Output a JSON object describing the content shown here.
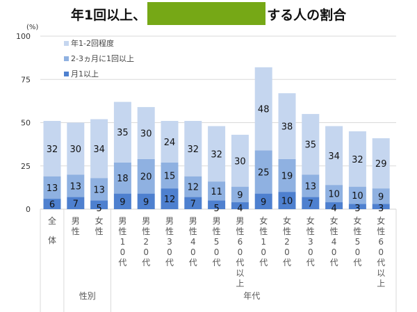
{
  "title": {
    "prefix": "年1回以上、",
    "suffix": "する人の割合",
    "mask_color": "#76a816"
  },
  "colors": {
    "low": "#c5d6ef",
    "mid": "#8fb1e1",
    "high": "#4e80cf"
  },
  "chart_data": {
    "type": "bar",
    "stacked": true,
    "yunit": "(%)",
    "ylim": [
      0,
      100
    ],
    "yticks": [
      0,
      25,
      50,
      75,
      100
    ],
    "legend": {
      "placement": "top-left",
      "entries": [
        "年1-2回程度",
        "2-3ヵ月に1回以上",
        "月1以上"
      ]
    },
    "categories": [
      "全体",
      "男性",
      "女性",
      "男性10代",
      "男性20代",
      "男性30代",
      "男性40代",
      "男性50代",
      "男性60代以上",
      "女性10代",
      "女性20代",
      "女性30代",
      "女性40代",
      "女性50代",
      "女性60代以上"
    ],
    "groups": [
      {
        "label": "",
        "from": 0,
        "to": 0
      },
      {
        "label": "性別",
        "from": 1,
        "to": 2
      },
      {
        "label": "年代",
        "from": 3,
        "to": 14
      }
    ],
    "series": [
      {
        "name": "月1以上",
        "values": [
          6,
          7,
          5,
          9,
          9,
          12,
          7,
          5,
          4,
          9,
          10,
          7,
          4,
          3,
          3
        ]
      },
      {
        "name": "2-3ヵ月に1回以上",
        "values": [
          13,
          13,
          13,
          18,
          20,
          15,
          12,
          11,
          9,
          25,
          19,
          13,
          10,
          10,
          9
        ]
      },
      {
        "name": "年1-2回程度",
        "values": [
          32,
          30,
          34,
          35,
          30,
          24,
          32,
          32,
          30,
          48,
          38,
          35,
          34,
          32,
          29
        ]
      }
    ]
  }
}
